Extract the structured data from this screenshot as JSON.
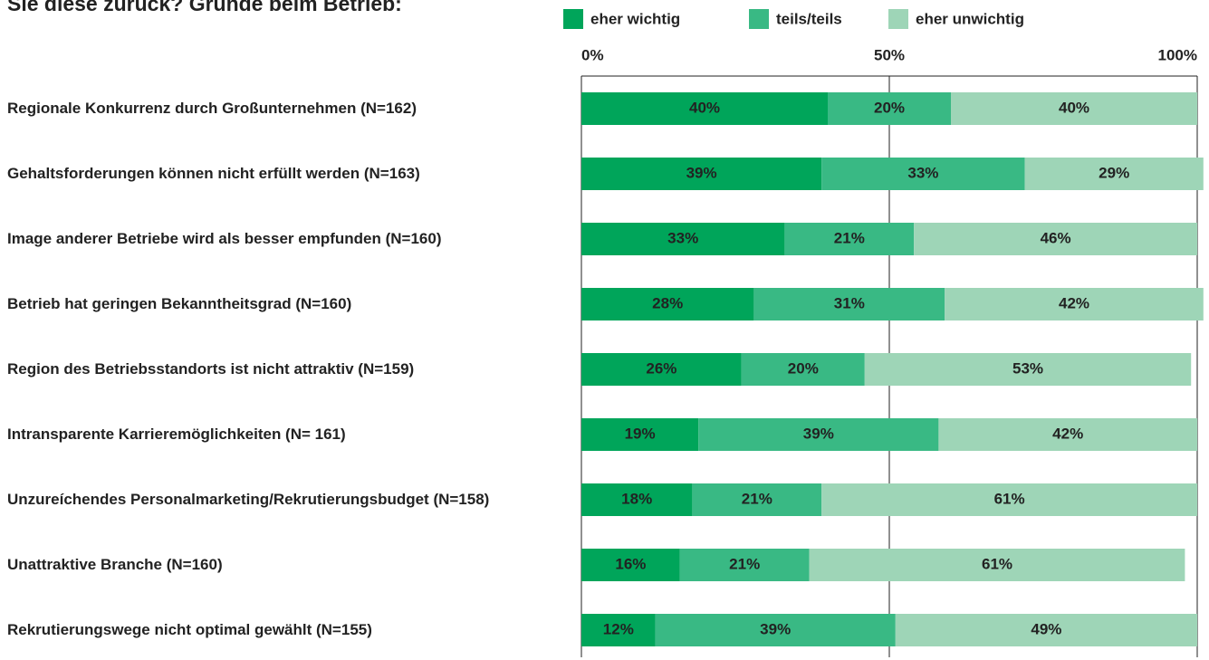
{
  "chart_data": {
    "type": "stacked_bar_horizontal",
    "title": "Sie diese zurück? Gründe beim Betrieb:",
    "categories": [
      "Regionale Konkurrenz durch Großunternehmen (N=162)",
      "Gehaltsforderungen können nicht erfüllt werden (N=163)",
      "Image anderer Betriebe wird als besser empfunden (N=160)",
      "Betrieb hat geringen Bekanntheitsgrad (N=160)",
      "Region des Betriebsstandorts ist nicht attraktiv (N=159)",
      "Intransparente Karrieremöglichkeiten (N= 161)",
      "Unzureíchendes Personalmarketing/Rekrutierungsbudget (N=158)",
      "Unattraktive Branche (N=160)",
      "Rekrutierungswege nicht optimal gewählt (N=155)"
    ],
    "series": [
      {
        "name": "eher wichtig",
        "color": "#00a55a",
        "values": [
          40,
          39,
          33,
          28,
          26,
          19,
          18,
          16,
          12
        ],
        "value_labels": [
          "40%",
          "39%",
          "33%",
          "28%",
          "26%",
          "19%",
          "18%",
          "16%",
          "12%"
        ]
      },
      {
        "name": "teils/teils",
        "color": "#39b984",
        "values": [
          20,
          33,
          21,
          31,
          20,
          39,
          21,
          21,
          39
        ],
        "value_labels": [
          "20%",
          "33%",
          "21%",
          "31%",
          "20%",
          "39%",
          "21%",
          "21%",
          "39%"
        ]
      },
      {
        "name": "eher unwichtig",
        "color": "#9ed5b7",
        "values": [
          40,
          29,
          46,
          42,
          53,
          42,
          61,
          61,
          49
        ],
        "value_labels": [
          "40%",
          "29%",
          "46%",
          "42%",
          "53%",
          "42%",
          "61%",
          "61%",
          "49%"
        ]
      }
    ],
    "xlim": [
      0,
      100
    ],
    "xticks": [
      {
        "value": 0,
        "label": "0%"
      },
      {
        "value": 50,
        "label": "50%"
      },
      {
        "value": 100,
        "label": "100%"
      }
    ],
    "grid": true,
    "legend": "top"
  }
}
